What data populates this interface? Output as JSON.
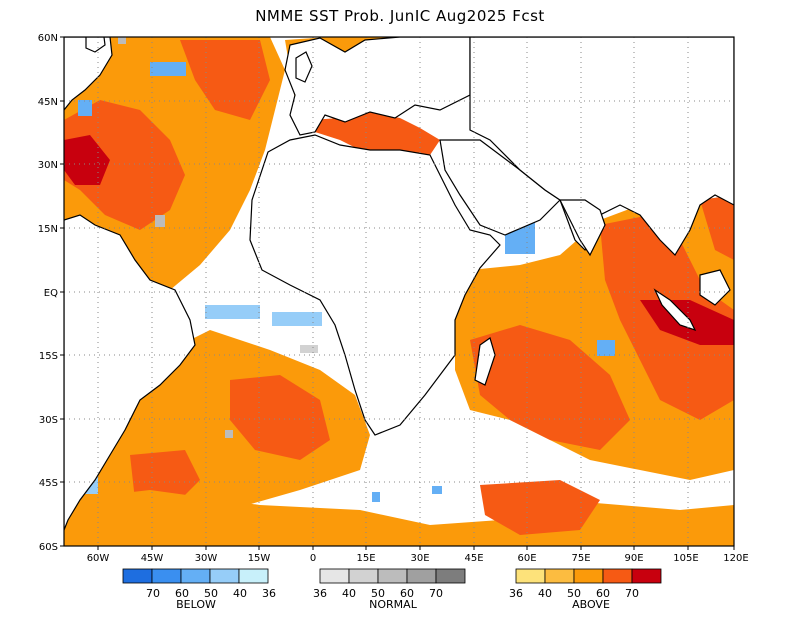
{
  "title": "NMME SST Prob. JunIC  Aug2025 Fcst",
  "lat_labels": [
    "60N",
    "45N",
    "30N",
    "15N",
    "EQ",
    "15S",
    "30S",
    "45S",
    "60S"
  ],
  "lon_labels": [
    "60W",
    "45W",
    "30W",
    "15W",
    "0",
    "15E",
    "30E",
    "45E",
    "60E",
    "75E",
    "90E",
    "105E",
    "120E"
  ],
  "legend": {
    "below": {
      "title": "BELOW",
      "ticks": [
        "70",
        "60",
        "50",
        "40",
        "36"
      ],
      "colors": [
        "#1e6ee0",
        "#3a8ff0",
        "#64aff5",
        "#96cdf8",
        "#c8f0fa"
      ]
    },
    "normal": {
      "title": "NORMAL",
      "ticks": [
        "36",
        "40",
        "50",
        "60",
        "70"
      ],
      "colors": [
        "#e6e6e6",
        "#d2d2d2",
        "#bcbcbc",
        "#a0a0a0",
        "#7d7d7d"
      ]
    },
    "above": {
      "title": "ABOVE",
      "ticks": [
        "36",
        "40",
        "50",
        "60",
        "70"
      ],
      "colors": [
        "#fde27a",
        "#fcbc40",
        "#fb9a0a",
        "#f65a14",
        "#c8000e"
      ]
    }
  }
}
